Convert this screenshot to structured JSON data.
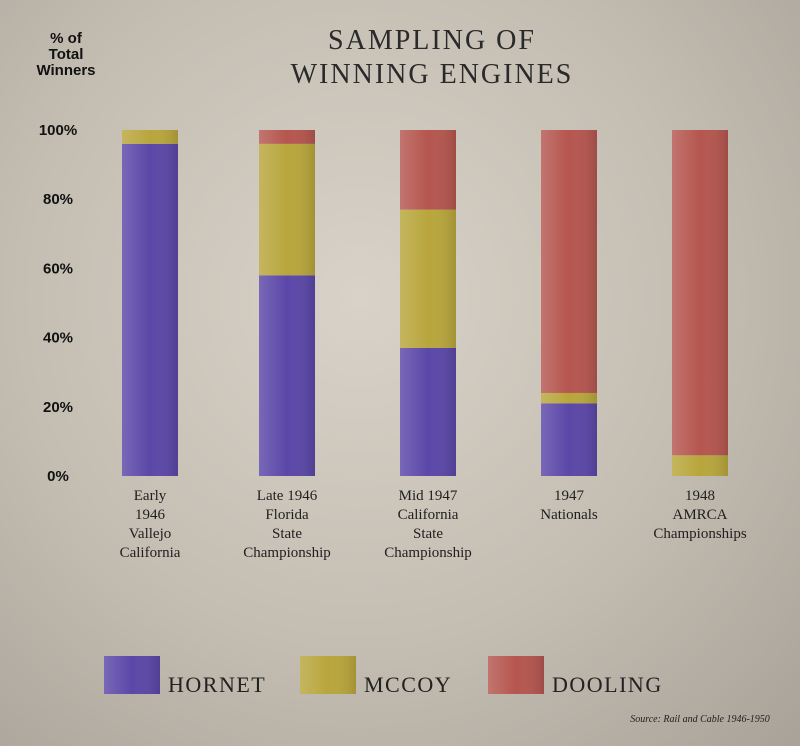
{
  "chart_data": {
    "type": "bar",
    "stacked": true,
    "title_lines": [
      "SAMPLING OF",
      "WINNING ENGINES"
    ],
    "ylabel_lines": [
      "% of",
      "Total",
      "Winners"
    ],
    "ylim": [
      0,
      100
    ],
    "yticks": [
      {
        "value": 0,
        "label": "0%"
      },
      {
        "value": 20,
        "label": "20%"
      },
      {
        "value": 40,
        "label": "40%"
      },
      {
        "value": 60,
        "label": "60%"
      },
      {
        "value": 80,
        "label": "80%"
      },
      {
        "value": 100,
        "label": "100%"
      }
    ],
    "categories": [
      [
        "Early",
        "1946",
        "Vallejo",
        "California"
      ],
      [
        "Late 1946",
        "Florida",
        "State",
        "Championship"
      ],
      [
        "Mid 1947",
        "California",
        "State",
        "Championship"
      ],
      [
        "1947",
        "Nationals"
      ],
      [
        "1948",
        "AMRCA",
        "Championships"
      ]
    ],
    "series": [
      {
        "name": "HORNET",
        "color": "#5b47a8",
        "values": [
          96,
          58,
          37,
          21,
          0
        ]
      },
      {
        "name": "MCCOY",
        "color": "#b8a63c",
        "values": [
          4,
          38,
          40,
          3,
          6
        ]
      },
      {
        "name": "DOOLING",
        "color": "#b5564f",
        "values": [
          0,
          4,
          23,
          76,
          94
        ]
      }
    ],
    "grid": false,
    "legend_position": "bottom",
    "source": "Source: Rail and Cable 1946-1950"
  }
}
